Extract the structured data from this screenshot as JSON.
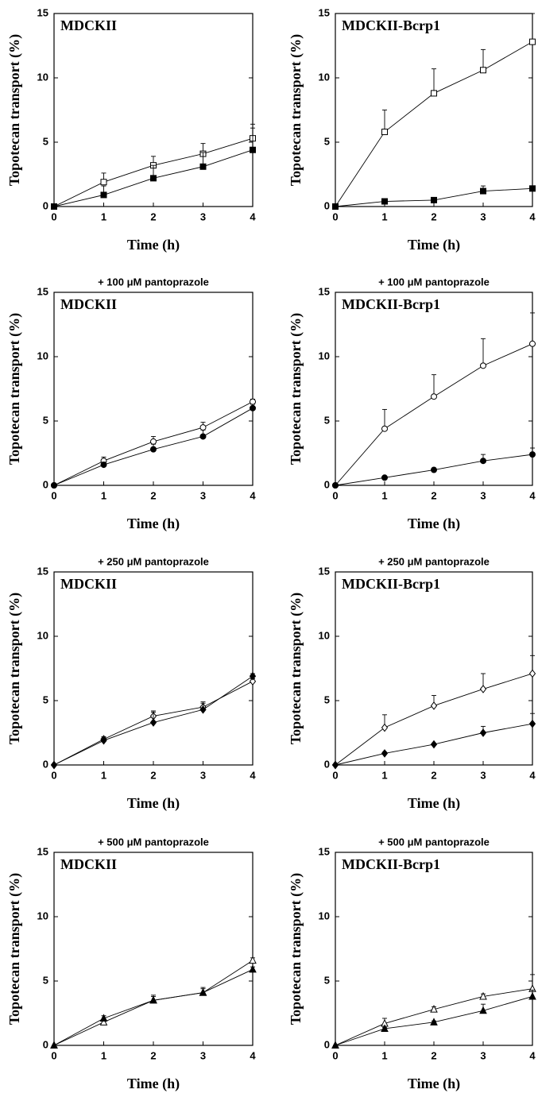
{
  "chart_data": [
    {
      "type": "line",
      "annotation": "MDCKII",
      "xlabel": "Time (h)",
      "ylabel": "Topotecan transport (%)",
      "x": [
        0,
        1,
        2,
        3,
        4
      ],
      "xlim": [
        0,
        4
      ],
      "ylim": [
        0,
        15
      ],
      "xticks": [
        0,
        1,
        2,
        3,
        4
      ],
      "yticks": [
        0,
        5,
        10,
        15
      ],
      "series": [
        {
          "marker": "square",
          "fill": "#ffffff",
          "color": "#000000",
          "values": [
            0,
            1.9,
            3.2,
            4.1,
            5.3
          ],
          "errors": [
            0,
            0.7,
            0.7,
            0.8,
            1.1
          ]
        },
        {
          "marker": "square",
          "fill": "#000000",
          "color": "#000000",
          "values": [
            0,
            0.9,
            2.2,
            3.1,
            4.4
          ],
          "errors": [
            0,
            0.7,
            1.0,
            1.1,
            1.7
          ]
        }
      ]
    },
    {
      "type": "line",
      "annotation": "MDCKII-Bcrp1",
      "xlabel": "Time (h)",
      "ylabel": "Topotecan transport (%)",
      "x": [
        0,
        1,
        2,
        3,
        4
      ],
      "xlim": [
        0,
        4
      ],
      "ylim": [
        0,
        15
      ],
      "xticks": [
        0,
        1,
        2,
        3,
        4
      ],
      "yticks": [
        0,
        5,
        10,
        15
      ],
      "series": [
        {
          "marker": "square",
          "fill": "#ffffff",
          "color": "#000000",
          "values": [
            0,
            5.8,
            8.8,
            10.6,
            12.8
          ],
          "errors": [
            0,
            1.7,
            1.9,
            1.6,
            2.2
          ]
        },
        {
          "marker": "square",
          "fill": "#000000",
          "color": "#000000",
          "values": [
            0,
            0.4,
            0.5,
            1.2,
            1.4
          ],
          "errors": [
            0,
            0.15,
            0.15,
            0.4,
            0.2
          ]
        }
      ]
    },
    {
      "type": "line",
      "title": "+ 100 μM pantoprazole",
      "annotation": "MDCKII",
      "xlabel": "Time (h)",
      "ylabel": "Topotecan transport (%)",
      "x": [
        0,
        1,
        2,
        3,
        4
      ],
      "xlim": [
        0,
        4
      ],
      "ylim": [
        0,
        15
      ],
      "xticks": [
        0,
        1,
        2,
        3,
        4
      ],
      "yticks": [
        0,
        5,
        10,
        15
      ],
      "series": [
        {
          "marker": "circle",
          "fill": "#ffffff",
          "color": "#000000",
          "values": [
            0,
            1.9,
            3.4,
            4.5,
            6.5
          ],
          "errors": [
            0,
            0.3,
            0.4,
            0.4,
            0.2
          ]
        },
        {
          "marker": "circle",
          "fill": "#000000",
          "color": "#000000",
          "values": [
            0,
            1.6,
            2.8,
            3.8,
            6.0
          ],
          "errors": [
            0,
            0.2,
            0.4,
            0.5,
            0.3
          ]
        }
      ]
    },
    {
      "type": "line",
      "title": "+ 100 μM pantoprazole",
      "annotation": "MDCKII-Bcrp1",
      "xlabel": "Time (h)",
      "ylabel": "Topotecan transport (%)",
      "x": [
        0,
        1,
        2,
        3,
        4
      ],
      "xlim": [
        0,
        4
      ],
      "ylim": [
        0,
        15
      ],
      "xticks": [
        0,
        1,
        2,
        3,
        4
      ],
      "yticks": [
        0,
        5,
        10,
        15
      ],
      "series": [
        {
          "marker": "circle",
          "fill": "#ffffff",
          "color": "#000000",
          "values": [
            0,
            4.4,
            6.9,
            9.3,
            11.0
          ],
          "errors": [
            0,
            1.5,
            1.7,
            2.1,
            2.4
          ]
        },
        {
          "marker": "circle",
          "fill": "#000000",
          "color": "#000000",
          "values": [
            0,
            0.6,
            1.2,
            1.9,
            2.4
          ],
          "errors": [
            0,
            0.1,
            0.15,
            0.5,
            0.5
          ]
        }
      ]
    },
    {
      "type": "line",
      "title": "+ 250 μM pantoprazole",
      "annotation": "MDCKII",
      "xlabel": "Time (h)",
      "ylabel": "Topotecan transport (%)",
      "x": [
        0,
        1,
        2,
        3,
        4
      ],
      "xlim": [
        0,
        4
      ],
      "ylim": [
        0,
        15
      ],
      "xticks": [
        0,
        1,
        2,
        3,
        4
      ],
      "yticks": [
        0,
        5,
        10,
        15
      ],
      "series": [
        {
          "marker": "diamond",
          "fill": "#ffffff",
          "color": "#000000",
          "values": [
            0,
            2.0,
            3.8,
            4.5,
            6.5
          ],
          "errors": [
            0,
            0.2,
            0.4,
            0.4,
            0.2
          ]
        },
        {
          "marker": "diamond",
          "fill": "#000000",
          "color": "#000000",
          "values": [
            0,
            1.9,
            3.3,
            4.3,
            6.9
          ],
          "errors": [
            0,
            0.2,
            0.8,
            0.5,
            0.2
          ]
        }
      ]
    },
    {
      "type": "line",
      "title": "+ 250 μM pantoprazole",
      "annotation": "MDCKII-Bcrp1",
      "xlabel": "Time (h)",
      "ylabel": "Topotecan transport (%)",
      "x": [
        0,
        1,
        2,
        3,
        4
      ],
      "xlim": [
        0,
        4
      ],
      "ylim": [
        0,
        15
      ],
      "xticks": [
        0,
        1,
        2,
        3,
        4
      ],
      "yticks": [
        0,
        5,
        10,
        15
      ],
      "series": [
        {
          "marker": "diamond",
          "fill": "#ffffff",
          "color": "#000000",
          "values": [
            0,
            2.9,
            4.6,
            5.9,
            7.1
          ],
          "errors": [
            0,
            1.0,
            0.8,
            1.2,
            1.4
          ]
        },
        {
          "marker": "diamond",
          "fill": "#000000",
          "color": "#000000",
          "values": [
            0,
            0.9,
            1.6,
            2.5,
            3.2
          ],
          "errors": [
            0,
            0.1,
            0.1,
            0.5,
            0.8
          ]
        }
      ]
    },
    {
      "type": "line",
      "title": "+ 500 μM pantoprazole",
      "annotation": "MDCKII",
      "xlabel": "Time (h)",
      "ylabel": "Topotecan transport (%)",
      "x": [
        0,
        1,
        2,
        3,
        4
      ],
      "xlim": [
        0,
        4
      ],
      "ylim": [
        0,
        15
      ],
      "xticks": [
        0,
        1,
        2,
        3,
        4
      ],
      "yticks": [
        0,
        5,
        10,
        15
      ],
      "series": [
        {
          "marker": "triangle",
          "fill": "#ffffff",
          "color": "#000000",
          "values": [
            0,
            1.8,
            3.5,
            4.1,
            6.6
          ],
          "errors": [
            0,
            0.2,
            0.4,
            0.3,
            0.2
          ]
        },
        {
          "marker": "triangle",
          "fill": "#000000",
          "color": "#000000",
          "values": [
            0,
            2.1,
            3.5,
            4.1,
            5.9
          ],
          "errors": [
            0,
            0.2,
            0.3,
            0.4,
            0.2
          ]
        }
      ]
    },
    {
      "type": "line",
      "title": "+ 500 μM pantoprazole",
      "annotation": "MDCKII-Bcrp1",
      "xlabel": "Time (h)",
      "ylabel": "Topotecan transport (%)",
      "x": [
        0,
        1,
        2,
        3,
        4
      ],
      "xlim": [
        0,
        4
      ],
      "ylim": [
        0,
        15
      ],
      "xticks": [
        0,
        1,
        2,
        3,
        4
      ],
      "yticks": [
        0,
        5,
        10,
        15
      ],
      "series": [
        {
          "marker": "triangle",
          "fill": "#ffffff",
          "color": "#000000",
          "values": [
            0,
            1.7,
            2.8,
            3.8,
            4.4
          ],
          "errors": [
            0,
            0.4,
            0.2,
            0.2,
            1.1
          ]
        },
        {
          "marker": "triangle",
          "fill": "#000000",
          "color": "#000000",
          "values": [
            0,
            1.3,
            1.8,
            2.7,
            3.8
          ],
          "errors": [
            0,
            0.1,
            0.1,
            0.5,
            0.5
          ]
        }
      ]
    }
  ]
}
